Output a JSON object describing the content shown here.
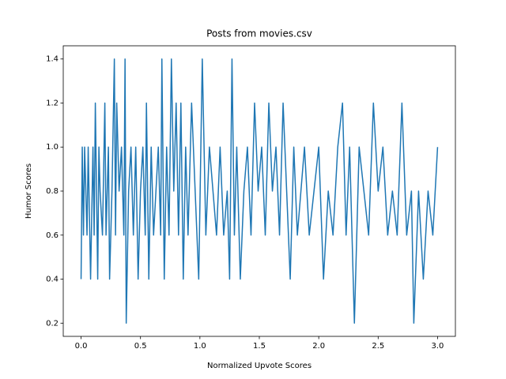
{
  "chart_data": {
    "type": "line",
    "title": "Posts from movies.csv",
    "x_label": "Normalized Upvote Scores",
    "y_label": "Humor Scores",
    "color": "#1f77b4",
    "x": [
      0,
      0.01,
      0.02,
      0.03,
      0.04,
      0.05,
      0.06,
      0.08,
      0.1,
      0.11,
      0.12,
      0.14,
      0.15,
      0.16,
      0.18,
      0.2,
      0.21,
      0.23,
      0.24,
      0.26,
      0.28,
      0.29,
      0.3,
      0.32,
      0.34,
      0.36,
      0.37,
      0.38,
      0.4,
      0.42,
      0.44,
      0.46,
      0.48,
      0.5,
      0.52,
      0.54,
      0.55,
      0.57,
      0.59,
      0.61,
      0.63,
      0.65,
      0.67,
      0.68,
      0.7,
      0.72,
      0.74,
      0.76,
      0.78,
      0.8,
      0.82,
      0.84,
      0.86,
      0.88,
      0.9,
      0.93,
      0.96,
      0.99,
      1.02,
      1.05,
      1.08,
      1.11,
      1.14,
      1.17,
      1.2,
      1.23,
      1.25,
      1.27,
      1.29,
      1.31,
      1.34,
      1.37,
      1.4,
      1.43,
      1.46,
      1.49,
      1.52,
      1.55,
      1.58,
      1.61,
      1.64,
      1.67,
      1.7,
      1.73,
      1.76,
      1.79,
      1.82,
      1.85,
      1.88,
      1.92,
      1.96,
      2.0,
      2.04,
      2.08,
      2.12,
      2.16,
      2.2,
      2.23,
      2.26,
      2.3,
      2.34,
      2.38,
      2.42,
      2.46,
      2.5,
      2.54,
      2.58,
      2.62,
      2.66,
      2.7,
      2.74,
      2.78,
      2.8,
      2.84,
      2.88,
      2.92,
      2.96,
      3.0
    ],
    "values": [
      0.4,
      1.0,
      0.6,
      1.0,
      0.8,
      0.6,
      1.0,
      0.4,
      1.0,
      0.6,
      1.2,
      0.4,
      1.0,
      0.8,
      0.6,
      1.2,
      0.6,
      1.0,
      0.4,
      0.8,
      1.4,
      0.6,
      1.2,
      0.8,
      1.0,
      0.6,
      1.4,
      0.2,
      0.8,
      1.0,
      0.6,
      1.0,
      0.4,
      0.8,
      1.0,
      0.6,
      1.2,
      0.4,
      1.0,
      0.6,
      0.8,
      1.0,
      0.6,
      1.4,
      0.4,
      1.0,
      0.6,
      1.4,
      0.8,
      1.2,
      0.6,
      1.2,
      0.4,
      1.0,
      0.6,
      1.2,
      0.8,
      0.4,
      1.4,
      0.6,
      1.0,
      0.8,
      0.6,
      1.0,
      0.6,
      0.8,
      0.4,
      1.4,
      0.6,
      1.0,
      0.4,
      0.8,
      1.0,
      0.6,
      1.2,
      0.8,
      1.0,
      0.6,
      1.2,
      0.8,
      1.0,
      0.6,
      1.2,
      0.8,
      0.4,
      1.0,
      0.6,
      0.8,
      1.0,
      0.6,
      0.8,
      1.0,
      0.4,
      0.8,
      0.6,
      1.0,
      1.2,
      0.6,
      1.0,
      0.2,
      1.0,
      0.8,
      0.6,
      1.2,
      0.8,
      1.0,
      0.6,
      0.8,
      0.6,
      1.2,
      0.6,
      0.8,
      0.2,
      0.8,
      0.4,
      0.8,
      0.6,
      1.0
    ],
    "xlim": [
      -0.15,
      3.15
    ],
    "ylim": [
      0.14,
      1.46
    ],
    "xticks": [
      {
        "value": 0,
        "label": "0.0"
      },
      0.5,
      {
        "value": 1,
        "label": "1.0"
      },
      1.5,
      {
        "value": 2,
        "label": "2.0"
      },
      2.5,
      {
        "value": 3,
        "label": "3.0"
      }
    ],
    "yticks": [
      0.2,
      0.4,
      0.6,
      0.8,
      {
        "value": 1,
        "label": "1.0"
      },
      1.2,
      1.4
    ]
  }
}
